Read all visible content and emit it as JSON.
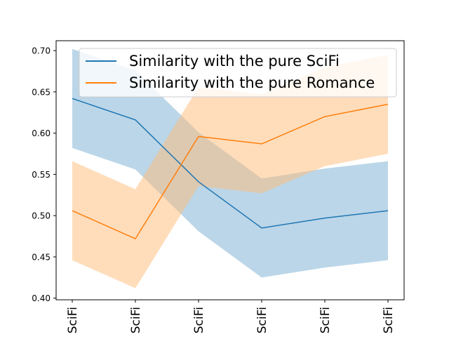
{
  "chart_data": {
    "type": "line",
    "x": [
      "SciFi",
      "SciFi",
      "SciFi",
      "SciFi",
      "SciFi",
      "SciFi"
    ],
    "ylim": [
      0.398,
      0.712
    ],
    "yticks": [
      0.4,
      0.45,
      0.5,
      0.55,
      0.6,
      0.65,
      0.7
    ],
    "grid": false,
    "legend_position": "upper-right",
    "series": [
      {
        "name": "Similarity with the pure SciFi",
        "color": "#1f77b4",
        "band_color": "#1f77b4",
        "values": [
          0.642,
          0.616,
          0.541,
          0.485,
          0.497,
          0.506
        ],
        "lower": [
          0.582,
          0.556,
          0.481,
          0.425,
          0.437,
          0.446
        ],
        "upper": [
          0.702,
          0.676,
          0.601,
          0.545,
          0.557,
          0.566
        ]
      },
      {
        "name": "Similarity with the pure Romance",
        "color": "#ff7f0e",
        "band_color": "#ffbb78",
        "values": [
          0.506,
          0.472,
          0.596,
          0.587,
          0.62,
          0.635
        ],
        "lower": [
          0.446,
          0.412,
          0.536,
          0.527,
          0.56,
          0.575
        ],
        "upper": [
          0.566,
          0.532,
          0.656,
          0.647,
          0.68,
          0.695
        ]
      }
    ]
  }
}
